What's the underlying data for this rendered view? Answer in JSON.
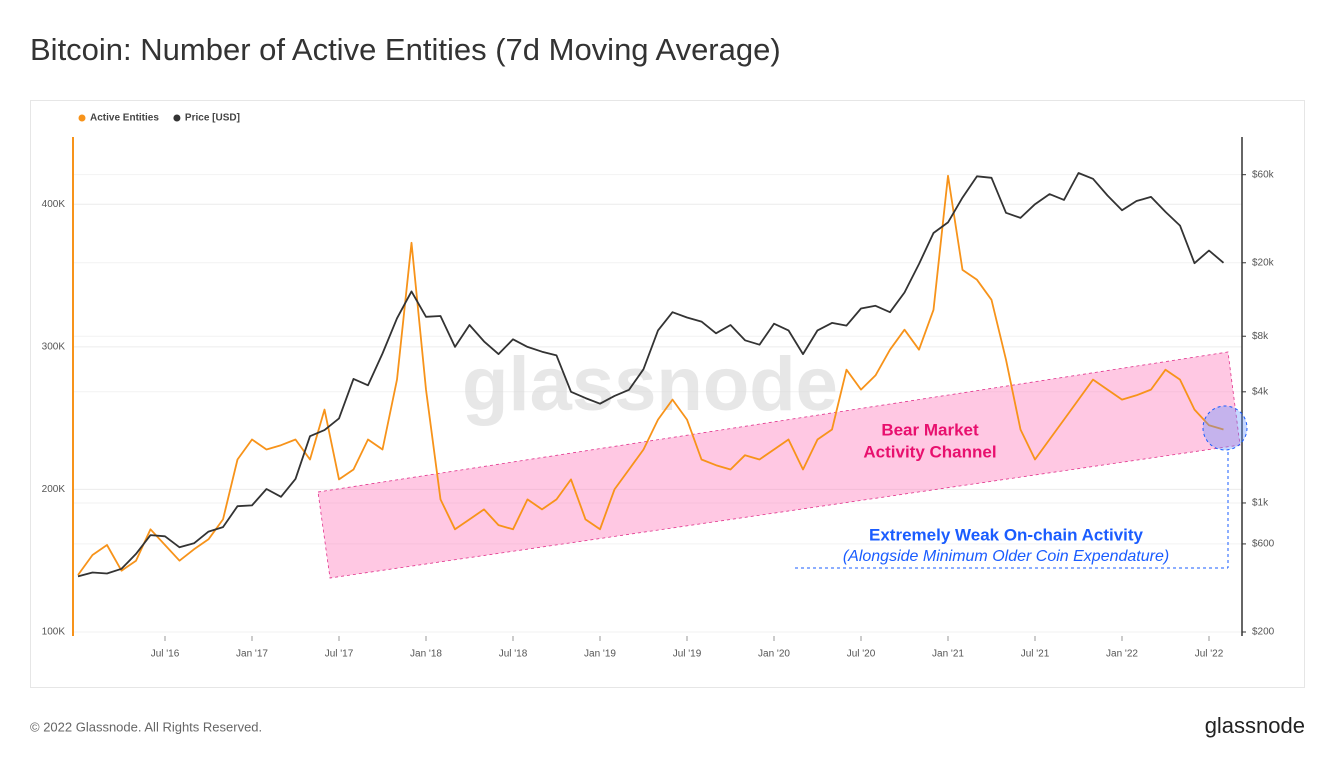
{
  "title": "Bitcoin: Number of Active Entities (7d Moving Average)",
  "footer": {
    "copyright": "© 2022 Glassnode. All Rights Reserved.",
    "logo": "glassnode"
  },
  "chart_data": {
    "type": "line",
    "watermark": "glassnode",
    "annotations": [
      "Bear Market",
      "Activity Channel",
      "Extremely Weak On-chain Activity",
      "(Alongside Minimum Older Coin Expendature)"
    ],
    "x": [
      "2016-01",
      "2016-02",
      "2016-03",
      "2016-04",
      "2016-05",
      "2016-06",
      "2016-07",
      "2016-08",
      "2016-09",
      "2016-10",
      "2016-11",
      "2016-12",
      "2017-01",
      "2017-02",
      "2017-03",
      "2017-04",
      "2017-05",
      "2017-06",
      "2017-07",
      "2017-08",
      "2017-09",
      "2017-10",
      "2017-11",
      "2017-12",
      "2018-01",
      "2018-02",
      "2018-03",
      "2018-04",
      "2018-05",
      "2018-06",
      "2018-07",
      "2018-08",
      "2018-09",
      "2018-10",
      "2018-11",
      "2018-12",
      "2019-01",
      "2019-02",
      "2019-03",
      "2019-04",
      "2019-05",
      "2019-06",
      "2019-07",
      "2019-08",
      "2019-09",
      "2019-10",
      "2019-11",
      "2019-12",
      "2020-01",
      "2020-02",
      "2020-03",
      "2020-04",
      "2020-05",
      "2020-06",
      "2020-07",
      "2020-08",
      "2020-09",
      "2020-10",
      "2020-11",
      "2020-12",
      "2021-01",
      "2021-02",
      "2021-03",
      "2021-04",
      "2021-05",
      "2021-06",
      "2021-07",
      "2021-08",
      "2021-09",
      "2021-10",
      "2021-11",
      "2021-12",
      "2022-01",
      "2022-02",
      "2022-03",
      "2022-04",
      "2022-05",
      "2022-06",
      "2022-07",
      "2022-08"
    ],
    "series": [
      {
        "name": "Active Entities",
        "color": "#f7931a",
        "axis": "y",
        "values": [
          140000,
          154000,
          161000,
          143000,
          150000,
          172000,
          161000,
          150000,
          158000,
          165000,
          179000,
          221000,
          235000,
          228000,
          231000,
          235000,
          221000,
          256000,
          207000,
          214000,
          235000,
          228000,
          277000,
          373000,
          270000,
          193000,
          172000,
          179000,
          186000,
          175000,
          172000,
          193000,
          186000,
          193000,
          207000,
          179000,
          172000,
          200000,
          214000,
          228000,
          249000,
          263000,
          249000,
          221000,
          217000,
          214000,
          224000,
          221000,
          228000,
          235000,
          214000,
          235000,
          242000,
          284000,
          270000,
          280000,
          298000,
          312000,
          298000,
          326000,
          420000,
          354000,
          347000,
          333000,
          291000,
          242000,
          221000,
          235000,
          249000,
          263000,
          277000,
          270000,
          263000,
          266000,
          270000,
          284000,
          277000,
          256000,
          245000,
          242000
        ]
      },
      {
        "name": "Price [USD]",
        "color": "#333333",
        "axis": "y2",
        "values": [
          400,
          420,
          415,
          440,
          530,
          670,
          660,
          575,
          605,
          700,
          740,
          960,
          970,
          1190,
          1080,
          1350,
          2300,
          2480,
          2870,
          4700,
          4340,
          6450,
          10000,
          14000,
          10200,
          10300,
          7000,
          9200,
          7500,
          6400,
          7700,
          7000,
          6600,
          6300,
          4000,
          3700,
          3450,
          3800,
          4100,
          5300,
          8600,
          10800,
          10100,
          9600,
          8300,
          9200,
          7600,
          7200,
          9350,
          8600,
          6400,
          8600,
          9450,
          9140,
          11300,
          11700,
          10800,
          13800,
          19700,
          29000,
          33100,
          45100,
          58800,
          57700,
          37300,
          35000,
          41500,
          47100,
          43800,
          61300,
          57000,
          46300,
          38500,
          43200,
          45500,
          37700,
          31800,
          19900,
          23300,
          20000
        ]
      }
    ],
    "xlim": [
      "2016-01",
      "2022-09"
    ],
    "xticks": [
      {
        "value": "2016-07",
        "label": "Jul '16"
      },
      {
        "value": "2017-01",
        "label": "Jan '17"
      },
      {
        "value": "2017-07",
        "label": "Jul '17"
      },
      {
        "value": "2018-01",
        "label": "Jan '18"
      },
      {
        "value": "2018-07",
        "label": "Jul '18"
      },
      {
        "value": "2019-01",
        "label": "Jan '19"
      },
      {
        "value": "2019-07",
        "label": "Jul '19"
      },
      {
        "value": "2020-01",
        "label": "Jan '20"
      },
      {
        "value": "2020-07",
        "label": "Jul '20"
      },
      {
        "value": "2021-01",
        "label": "Jan '21"
      },
      {
        "value": "2021-07",
        "label": "Jul '21"
      },
      {
        "value": "2022-01",
        "label": "Jan '22"
      },
      {
        "value": "2022-07",
        "label": "Jul '22"
      }
    ],
    "ylim": [
      100000,
      450000
    ],
    "yticks": [
      {
        "value": 100000,
        "label": "100K"
      },
      {
        "value": 200000,
        "label": "200K"
      },
      {
        "value": 300000,
        "label": "300K"
      },
      {
        "value": 400000,
        "label": "400K"
      }
    ],
    "y2lim": [
      200,
      96000
    ],
    "y2_log": true,
    "y2ticks": [
      {
        "value": 200,
        "label": "$200"
      },
      {
        "value": 600,
        "label": "$600"
      },
      {
        "value": 1000,
        "label": "$1k"
      },
      {
        "value": 4000,
        "label": "$4k"
      },
      {
        "value": 8000,
        "label": "$8k"
      },
      {
        "value": 20000,
        "label": "$20k"
      },
      {
        "value": 60000,
        "label": "$60k"
      }
    ],
    "grid": true,
    "legend": "top-left"
  }
}
